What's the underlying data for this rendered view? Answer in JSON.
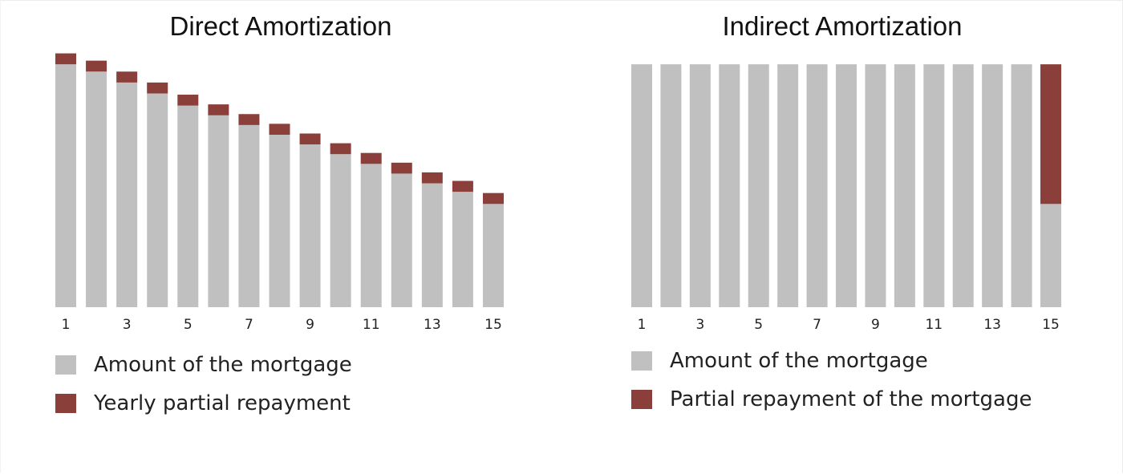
{
  "chart_data": [
    {
      "type": "bar",
      "stacked": true,
      "title": "Direct Amortization",
      "categories": [
        1,
        2,
        3,
        4,
        5,
        6,
        7,
        8,
        9,
        10,
        11,
        12,
        13,
        14,
        15
      ],
      "tick_labels": [
        "1",
        "",
        "3",
        "",
        "5",
        "",
        "7",
        "",
        "9",
        "",
        "11",
        "",
        "13",
        "",
        "15"
      ],
      "series": [
        {
          "name": "Amount of the mortgage",
          "color": "#c0c0c0",
          "values": [
            100,
            97,
            92.5,
            88,
            83,
            79,
            75,
            71,
            67,
            63,
            59,
            55,
            51,
            47.5,
            42.5
          ]
        },
        {
          "name": "Yearly partial repayment",
          "color": "#8b3f3a",
          "values": [
            4.5,
            4.5,
            4.5,
            4.5,
            4.5,
            4.5,
            4.5,
            4.5,
            4.5,
            4.5,
            4.5,
            4.5,
            4.5,
            4.5,
            4.5
          ]
        }
      ],
      "ylim": [
        0,
        106
      ],
      "grid": false,
      "legend_position": "bottom-left"
    },
    {
      "type": "bar",
      "stacked": true,
      "title": "Indirect Amortization",
      "categories": [
        1,
        2,
        3,
        4,
        5,
        6,
        7,
        8,
        9,
        10,
        11,
        12,
        13,
        14,
        15
      ],
      "tick_labels": [
        "1",
        "",
        "3",
        "",
        "5",
        "",
        "7",
        "",
        "9",
        "",
        "11",
        "",
        "13",
        "",
        "15"
      ],
      "series": [
        {
          "name": "Amount of the mortgage",
          "color": "#c0c0c0",
          "values": [
            100,
            100,
            100,
            100,
            100,
            100,
            100,
            100,
            100,
            100,
            100,
            100,
            100,
            100,
            42.5
          ]
        },
        {
          "name": "Partial repayment of the mortgage",
          "color": "#8b3f3a",
          "values": [
            0,
            0,
            0,
            0,
            0,
            0,
            0,
            0,
            0,
            0,
            0,
            0,
            0,
            0,
            57.5
          ]
        }
      ],
      "ylim": [
        0,
        106
      ],
      "grid": false,
      "legend_position": "bottom-left"
    }
  ]
}
